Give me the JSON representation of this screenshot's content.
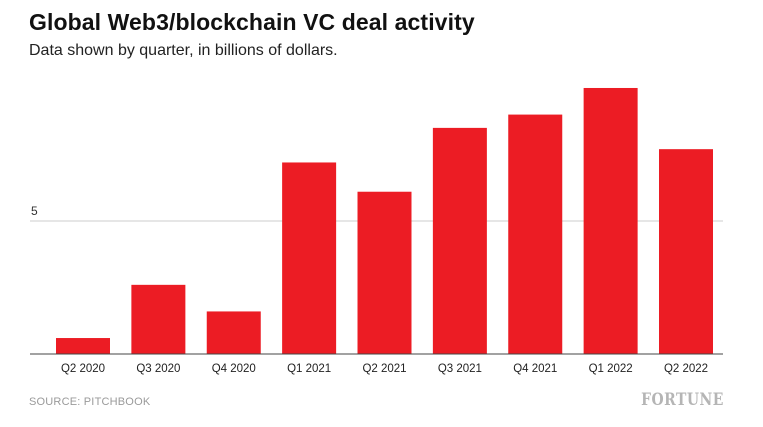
{
  "header": {
    "title": "Global Web3/blockchain VC deal activity",
    "subtitle": "Data shown by quarter, in billions of dollars."
  },
  "footer": {
    "source": "SOURCE: PITCHBOOK",
    "brand": "FORTUNE"
  },
  "colors": {
    "bar": "#ec1c24",
    "gridline": "#cccccc",
    "axis": "#444444"
  },
  "chart_data": {
    "type": "bar",
    "title": "Global Web3/blockchain VC deal activity",
    "subtitle": "Data shown by quarter, in billions of dollars.",
    "xlabel": "",
    "ylabel": "",
    "categories": [
      "Q2 2020",
      "Q3 2020",
      "Q4 2020",
      "Q1 2021",
      "Q2 2021",
      "Q3 2021",
      "Q4 2021",
      "Q1 2022",
      "Q2 2022"
    ],
    "values": [
      0.6,
      2.6,
      1.6,
      7.2,
      6.1,
      8.5,
      9.0,
      10.0,
      7.7
    ],
    "yticks": [
      {
        "value": 5,
        "label": "5"
      }
    ],
    "ylim": [
      0,
      10.3
    ],
    "grid": true,
    "legend": "none"
  }
}
